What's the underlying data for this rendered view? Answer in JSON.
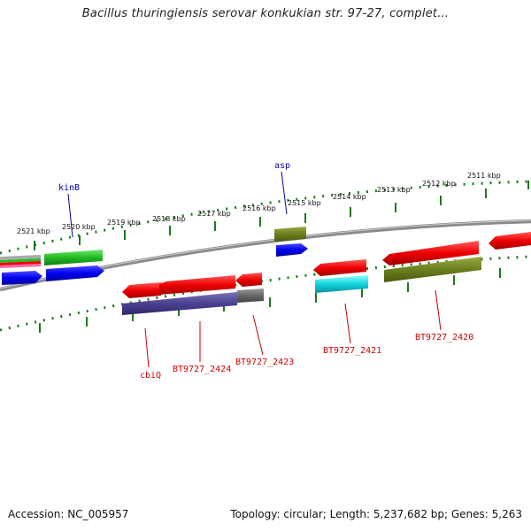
{
  "header": {
    "title": "Bacillus thuringiensis serovar konkukian str. 97-27, complet..."
  },
  "footer": {
    "accession": "Accession: NC_005957",
    "topology": "Topology: circular; Length: 5,237,682 bp; Genes: 5,263"
  },
  "colors": {
    "backbone": "#7a7a7a",
    "scale_ticks": "#1a7a1a",
    "label_top": "#0000aa",
    "label_bottom": "#cc0000"
  },
  "scale_labels": [
    "2521 kbp",
    "2520 kbp",
    "2519 kbp",
    "2518 kbp",
    "2517 kbp",
    "2516 kbp",
    "2515 kbp",
    "2514 kbp",
    "2513 kbp",
    "2512 kbp",
    "2511 kbp"
  ],
  "gene_labels": {
    "top": [
      "kinB",
      "asp"
    ],
    "bottom": [
      "cbiQ",
      "BT9727_2424",
      "BT9727_2423",
      "BT9727_2421",
      "BT9727_2420"
    ]
  }
}
